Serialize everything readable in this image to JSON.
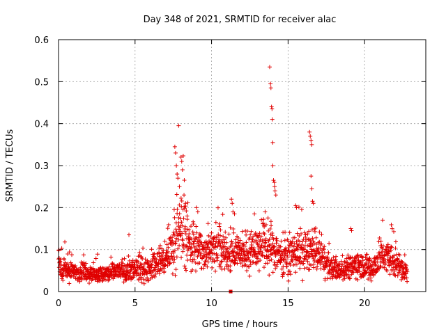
{
  "chart_data": {
    "type": "scatter",
    "title": "Day 348 of 2021, SRMTID for receiver alac",
    "xlabel": "GPS time / hours",
    "ylabel": "SRMTID / TECUs",
    "xlim": [
      0,
      24
    ],
    "ylim": [
      0,
      0.6
    ],
    "x_ticks": [
      0,
      5,
      10,
      15,
      20
    ],
    "x_tick_labels": [
      "0",
      "5",
      "10",
      "15",
      "20"
    ],
    "y_ticks": [
      0,
      0.1,
      0.2,
      0.3,
      0.4,
      0.5,
      0.6
    ],
    "y_tick_labels": [
      "0",
      "0.1",
      "0.2",
      "0.3",
      "0.4",
      "0.5",
      "0.6"
    ],
    "grid": true,
    "marker": "+",
    "color": "#e00000",
    "data_extent_hours": [
      0,
      22.8
    ],
    "profile": [
      [
        0.0,
        0.05,
        0.02
      ],
      [
        0.5,
        0.05,
        0.02
      ],
      [
        1.0,
        0.045,
        0.015
      ],
      [
        1.5,
        0.05,
        0.015
      ],
      [
        2.0,
        0.045,
        0.015
      ],
      [
        2.5,
        0.04,
        0.015
      ],
      [
        3.0,
        0.04,
        0.015
      ],
      [
        3.5,
        0.045,
        0.015
      ],
      [
        4.0,
        0.05,
        0.015
      ],
      [
        4.5,
        0.05,
        0.02
      ],
      [
        5.0,
        0.05,
        0.02
      ],
      [
        5.5,
        0.05,
        0.02
      ],
      [
        6.0,
        0.055,
        0.02
      ],
      [
        6.5,
        0.065,
        0.02
      ],
      [
        7.0,
        0.08,
        0.025
      ],
      [
        7.5,
        0.11,
        0.04
      ],
      [
        8.0,
        0.15,
        0.06
      ],
      [
        8.5,
        0.12,
        0.05
      ],
      [
        9.0,
        0.1,
        0.04
      ],
      [
        9.5,
        0.095,
        0.03
      ],
      [
        10.0,
        0.1,
        0.03
      ],
      [
        10.5,
        0.1,
        0.035
      ],
      [
        11.0,
        0.09,
        0.03
      ],
      [
        11.5,
        0.09,
        0.03
      ],
      [
        12.0,
        0.095,
        0.03
      ],
      [
        12.5,
        0.1,
        0.035
      ],
      [
        13.0,
        0.105,
        0.035
      ],
      [
        13.5,
        0.11,
        0.04
      ],
      [
        14.0,
        0.1,
        0.04
      ],
      [
        14.5,
        0.085,
        0.03
      ],
      [
        15.0,
        0.08,
        0.03
      ],
      [
        15.5,
        0.095,
        0.035
      ],
      [
        16.0,
        0.095,
        0.035
      ],
      [
        16.5,
        0.1,
        0.035
      ],
      [
        17.0,
        0.09,
        0.03
      ],
      [
        17.5,
        0.065,
        0.025
      ],
      [
        18.0,
        0.055,
        0.02
      ],
      [
        18.5,
        0.055,
        0.02
      ],
      [
        19.0,
        0.06,
        0.02
      ],
      [
        19.5,
        0.065,
        0.025
      ],
      [
        20.0,
        0.06,
        0.02
      ],
      [
        20.5,
        0.055,
        0.02
      ],
      [
        21.0,
        0.08,
        0.03
      ],
      [
        21.5,
        0.085,
        0.03
      ],
      [
        22.0,
        0.07,
        0.025
      ],
      [
        22.5,
        0.055,
        0.02
      ],
      [
        22.8,
        0.045,
        0.015
      ]
    ],
    "spikes": [
      [
        7.85,
        0.395
      ],
      [
        7.6,
        0.345
      ],
      [
        7.65,
        0.33
      ],
      [
        7.7,
        0.3
      ],
      [
        7.75,
        0.28
      ],
      [
        7.8,
        0.27
      ],
      [
        7.9,
        0.25
      ],
      [
        8.0,
        0.32
      ],
      [
        8.05,
        0.31
      ],
      [
        8.1,
        0.29
      ],
      [
        8.2,
        0.23
      ],
      [
        8.3,
        0.21
      ],
      [
        8.4,
        0.18
      ],
      [
        9.0,
        0.2
      ],
      [
        9.1,
        0.19
      ],
      [
        11.3,
        0.22
      ],
      [
        11.35,
        0.21
      ],
      [
        11.4,
        0.19
      ],
      [
        11.5,
        0.185
      ],
      [
        12.8,
        0.185
      ],
      [
        13.5,
        0.19
      ],
      [
        13.8,
        0.535
      ],
      [
        13.85,
        0.495
      ],
      [
        13.88,
        0.485
      ],
      [
        13.92,
        0.44
      ],
      [
        13.95,
        0.435
      ],
      [
        13.97,
        0.41
      ],
      [
        14.0,
        0.355
      ],
      [
        14.0,
        0.3
      ],
      [
        14.05,
        0.265
      ],
      [
        14.1,
        0.26
      ],
      [
        14.12,
        0.25
      ],
      [
        14.15,
        0.24
      ],
      [
        14.2,
        0.23
      ],
      [
        15.5,
        0.205
      ],
      [
        15.55,
        0.2
      ],
      [
        16.4,
        0.38
      ],
      [
        16.45,
        0.37
      ],
      [
        16.5,
        0.36
      ],
      [
        16.55,
        0.35
      ],
      [
        16.5,
        0.275
      ],
      [
        16.55,
        0.245
      ],
      [
        16.6,
        0.215
      ],
      [
        16.65,
        0.21
      ],
      [
        19.1,
        0.15
      ],
      [
        19.15,
        0.145
      ],
      [
        4.6,
        0.135
      ]
    ],
    "square_marker": [
      11.25,
      0.0
    ]
  }
}
